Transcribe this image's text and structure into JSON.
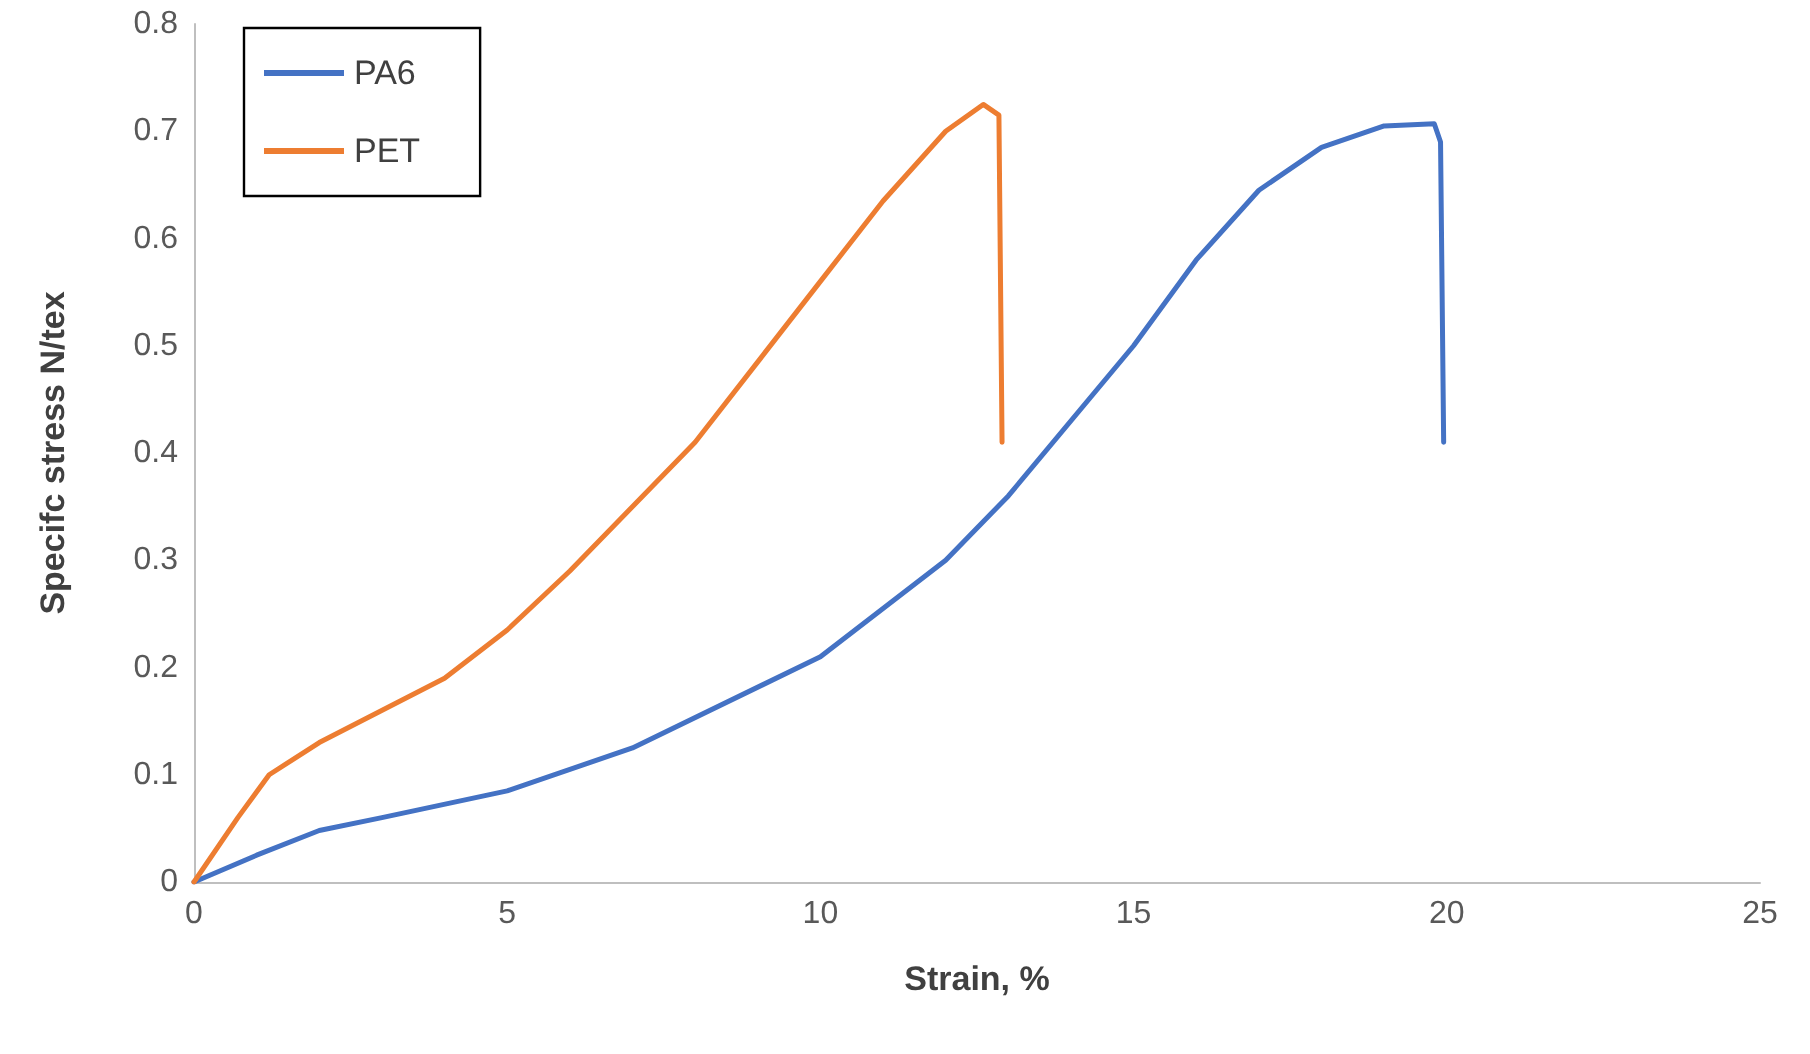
{
  "chart_data": {
    "type": "line",
    "xlabel": "Strain, %",
    "ylabel": "Specifc stress N/tex",
    "xlim": [
      0,
      25
    ],
    "xticks": [
      0,
      5,
      10,
      15,
      20,
      25
    ],
    "ylim": [
      0,
      0.8
    ],
    "yticks": [
      0,
      0.1,
      0.2,
      0.3,
      0.4,
      0.5,
      0.6,
      0.7,
      0.8
    ],
    "grid": false,
    "legend": "top left",
    "marker": "none",
    "line_style": "solid",
    "series": [
      {
        "name": "PA6",
        "color": "#4472c4",
        "x": [
          0,
          1,
          2,
          3,
          5,
          7,
          10,
          12,
          13,
          15,
          16,
          17,
          18,
          19,
          19.8,
          19.9,
          19.95
        ],
        "values": [
          0,
          0.025,
          0.048,
          0.06,
          0.085,
          0.125,
          0.21,
          0.3,
          0.36,
          0.5,
          0.58,
          0.645,
          0.685,
          0.705,
          0.707,
          0.69,
          0.41
        ]
      },
      {
        "name": "PET",
        "color": "#ed7d31",
        "x": [
          0,
          0.7,
          1.2,
          2,
          4,
          5,
          6,
          8,
          10,
          11,
          12,
          12.6,
          12.85,
          12.9
        ],
        "values": [
          0,
          0.06,
          0.1,
          0.13,
          0.19,
          0.235,
          0.29,
          0.41,
          0.56,
          0.635,
          0.7,
          0.725,
          0.715,
          0.41
        ]
      }
    ]
  }
}
